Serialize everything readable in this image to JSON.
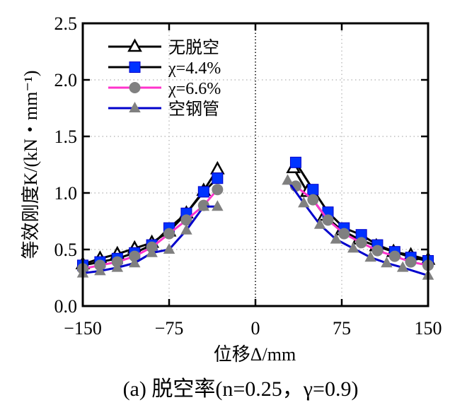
{
  "chart_data": {
    "type": "line",
    "title": "",
    "caption": "(a) 脱空率(n=0.25，γ=0.9)",
    "xlabel": "位移Δ/mm",
    "ylabel": "等效刚度K/(kN・mm⁻¹)",
    "xlim": [
      -150,
      150
    ],
    "ylim": [
      0,
      2.5
    ],
    "xticks": [
      -150,
      -75,
      0,
      75,
      150
    ],
    "xtick_labels": [
      "−150",
      "−75",
      "0",
      "75",
      "150"
    ],
    "yticks": [
      0,
      0.5,
      1.0,
      1.5,
      2.0,
      2.5
    ],
    "ytick_labels": [
      "0.0",
      "0.5",
      "1.0",
      "1.5",
      "2.0",
      "2.5"
    ],
    "grid": true,
    "legend_position": "top-left",
    "series": [
      {
        "name": "无脱空",
        "line_color": "#000000",
        "marker": "triangle-open",
        "marker_fill": "#ffffff",
        "marker_stroke": "#000000",
        "branches": [
          {
            "x": [
              -150,
              -135,
              -120,
              -105,
              -90,
              -75,
              -60,
              -45,
              -33
            ],
            "y": [
              0.37,
              0.42,
              0.46,
              0.51,
              0.56,
              0.66,
              0.82,
              1.02,
              1.21
            ]
          },
          {
            "x": [
              33,
              45,
              60,
              75,
              90,
              105,
              120,
              135,
              150
            ],
            "y": [
              1.22,
              1.01,
              0.8,
              0.67,
              0.59,
              0.53,
              0.48,
              0.45,
              0.41
            ]
          }
        ]
      },
      {
        "name": "χ=4.4%",
        "line_color": "#000000",
        "marker": "square",
        "marker_fill": "#0033ff",
        "marker_stroke": "#0000cc",
        "branches": [
          {
            "x": [
              -150,
              -135,
              -120,
              -105,
              -90,
              -75,
              -60,
              -45,
              -33
            ],
            "y": [
              0.36,
              0.39,
              0.42,
              0.47,
              0.54,
              0.69,
              0.82,
              1.01,
              1.13
            ]
          },
          {
            "x": [
              35,
              50,
              63,
              77,
              92,
              106,
              121,
              135,
              150
            ],
            "y": [
              1.27,
              1.03,
              0.83,
              0.69,
              0.63,
              0.54,
              0.48,
              0.43,
              0.4
            ]
          }
        ]
      },
      {
        "name": "χ=6.6%",
        "line_color": "#ff33cc",
        "marker": "circle",
        "marker_fill": "#808080",
        "marker_stroke": "#808080",
        "branches": [
          {
            "x": [
              -150,
              -135,
              -120,
              -105,
              -90,
              -75,
              -60,
              -45,
              -33
            ],
            "y": [
              0.33,
              0.36,
              0.39,
              0.44,
              0.52,
              0.64,
              0.76,
              0.89,
              1.03
            ]
          },
          {
            "x": [
              35,
              50,
              63,
              77,
              92,
              106,
              121,
              135,
              150
            ],
            "y": [
              1.06,
              0.94,
              0.76,
              0.64,
              0.56,
              0.49,
              0.44,
              0.39,
              0.36
            ]
          }
        ]
      },
      {
        "name": "空钢管",
        "line_color": "#0000cc",
        "marker": "triangle",
        "marker_fill": "#808080",
        "marker_stroke": "#808080",
        "branches": [
          {
            "x": [
              -150,
              -135,
              -120,
              -105,
              -90,
              -75,
              -60,
              -45,
              -33
            ],
            "y": [
              0.29,
              0.31,
              0.34,
              0.38,
              0.47,
              0.5,
              0.67,
              0.88,
              0.88
            ]
          },
          {
            "x": [
              28,
              42,
              56,
              70,
              85,
              100,
              114,
              128,
              150
            ],
            "y": [
              1.11,
              0.91,
              0.72,
              0.59,
              0.51,
              0.43,
              0.38,
              0.34,
              0.27
            ]
          }
        ]
      }
    ]
  }
}
